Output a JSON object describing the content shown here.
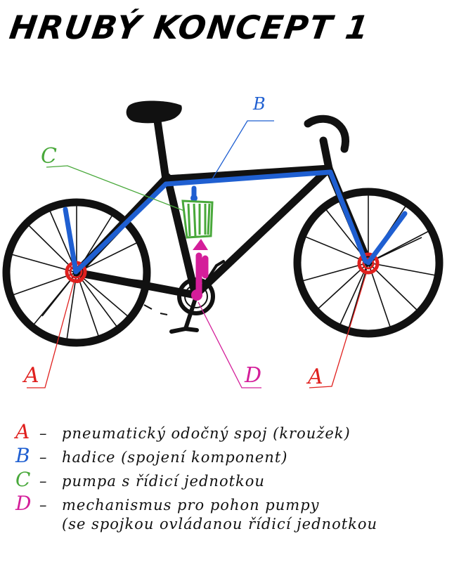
{
  "title": "HRUBÝ KONCEPT 1",
  "colors": {
    "frame": "#111111",
    "hose": "#1f5fd1",
    "pump": "#48a83a",
    "coupling": "#e0201e",
    "mechanism": "#d41e9a"
  },
  "callouts": {
    "a_left": "A",
    "a_right": "A",
    "b": "B",
    "c": "C",
    "d": "D"
  },
  "legend": [
    {
      "key": "A",
      "text": "pneumatický odočný spoj (kroužek)",
      "color": "#e0201e"
    },
    {
      "key": "B",
      "text": "hadice (spojení komponent)",
      "color": "#1f5fd1"
    },
    {
      "key": "C",
      "text": "pumpa s řídicí jednotkou",
      "color": "#48a83a"
    },
    {
      "key": "D",
      "text": "mechanismus pro pohon pumpy",
      "color": "#d41e9a"
    }
  ],
  "legend_continuation": "(se spojkou ovládanou řídicí jednotkou"
}
